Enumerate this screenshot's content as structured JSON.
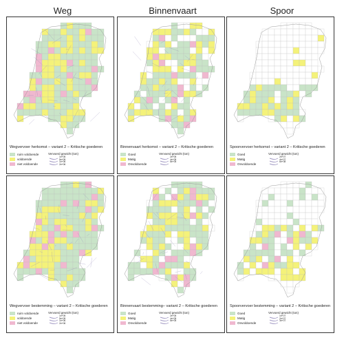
{
  "column_titles": [
    "Weg",
    "Binnenvaart",
    "Spoor"
  ],
  "colors": {
    "good": "#c9e4c8",
    "medium": "#f4f27a",
    "bad": "#f0b8cf",
    "empty": "#ffffff",
    "border": "#333333",
    "flow": "#8a7fb4"
  },
  "panels": [
    {
      "key": "weg-herkomst",
      "title": "Wegvervoer herkomst – variant 2 – Kritische goederen",
      "legend": [
        "ruim voldoende",
        "voldoende",
        "niet voldoende"
      ],
      "volume_title": "Vervoerd gewicht (ton)",
      "volume_labels": [
        "1e+05",
        "5e+05",
        "1e+06",
        "2e+06"
      ]
    },
    {
      "key": "binnenvaart-herkomst",
      "title": "Binnenvaart herkomst – variant 2 – Kritische goederen",
      "legend": [
        "Goed",
        "Matig",
        "Onvoldoende"
      ],
      "volume_title": "Vervoerd gewicht (ton)",
      "volume_labels": [
        "2e+05",
        "4e+05",
        "6e+05"
      ]
    },
    {
      "key": "spoor-herkomst",
      "title": "Spoorvervoer herkomst – variant 2 – Kritische goederen",
      "legend": [
        "Goed",
        "Matig",
        "Onvoldoende"
      ],
      "volume_title": "Vervoerd gewicht (ton)",
      "volume_labels": [
        "2e+07",
        "4e+07",
        "6e+08"
      ]
    },
    {
      "key": "weg-bestemming",
      "title": "Wegvervoer bestemming – variant 2 – Kritische goederen",
      "legend": [
        "ruim voldoende",
        "voldoende",
        "niet voldoende"
      ],
      "volume_title": "Vervoerd gewicht (ton)",
      "volume_labels": [
        "1e+05",
        "5e+05",
        "1e+06",
        "2e+06"
      ]
    },
    {
      "key": "binnenvaart-bestemming",
      "title": "Binnenvaart bestemming– variant 2 – Kritische goederen",
      "legend": [
        "Goed",
        "Matig",
        "Onvoldoende"
      ],
      "volume_title": "Vervoerd gewicht (ton)",
      "volume_labels": [
        "2e+05",
        "4e+05",
        "6e+05"
      ]
    },
    {
      "key": "spoor-bestemming",
      "title": "Spoorvervoer bestemming – variant 2 – Kritische goederen",
      "legend": [
        "Goed",
        "Matig",
        "Onvoldoende"
      ],
      "volume_title": "Vervoerd gewicht (ton)",
      "volume_labels": [
        "1e+07",
        "2e+07",
        "3e+07"
      ]
    }
  ]
}
